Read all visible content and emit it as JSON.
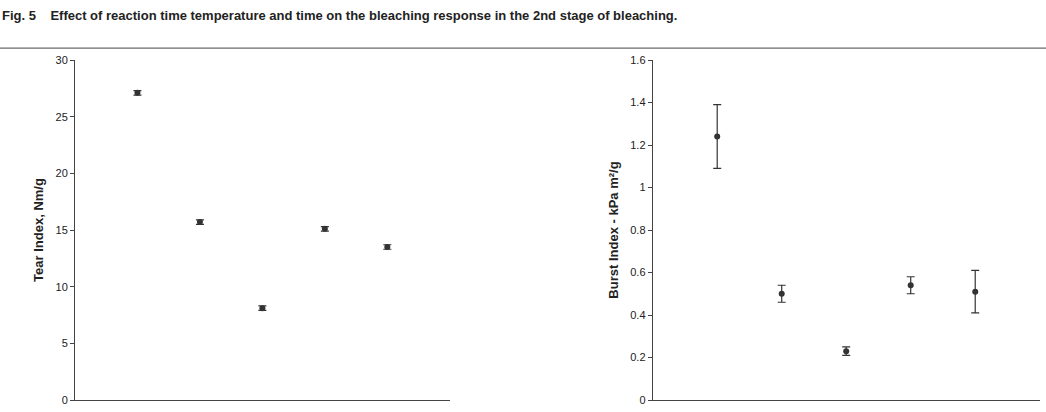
{
  "caption": "Fig. 5    Effect of reaction time temperature and time on the bleaching response in the 2nd stage of bleaching.",
  "chart_data": [
    {
      "type": "scatter",
      "y_label": "Tear Index, Nm/g",
      "x": [
        1,
        2,
        3,
        4,
        5
      ],
      "values": [
        27.1,
        15.7,
        8.1,
        15.1,
        13.5
      ],
      "error": [
        0.2,
        0.2,
        0.2,
        0.2,
        0.2
      ],
      "color": "#333333",
      "marker": "circle",
      "xlim": [
        0,
        6
      ],
      "ylim": [
        0,
        30
      ],
      "yticks": [
        0,
        5,
        10,
        15,
        20,
        25,
        30
      ],
      "grid": false,
      "tick_labels": "y"
    },
    {
      "type": "scatter",
      "y_label": "Burst Index - kPa m²/g",
      "x": [
        1,
        2,
        3,
        4,
        5
      ],
      "values": [
        1.24,
        0.5,
        0.23,
        0.54,
        0.51
      ],
      "error": [
        0.15,
        0.04,
        0.02,
        0.04,
        0.1
      ],
      "color": "#333333",
      "marker": "circle",
      "xlim": [
        0,
        6
      ],
      "ylim": [
        0,
        1.6
      ],
      "yticks": [
        0,
        0.2,
        0.4,
        0.6,
        0.8,
        1,
        1.2,
        1.4,
        1.6
      ],
      "grid": false,
      "tick_labels": "y"
    }
  ]
}
